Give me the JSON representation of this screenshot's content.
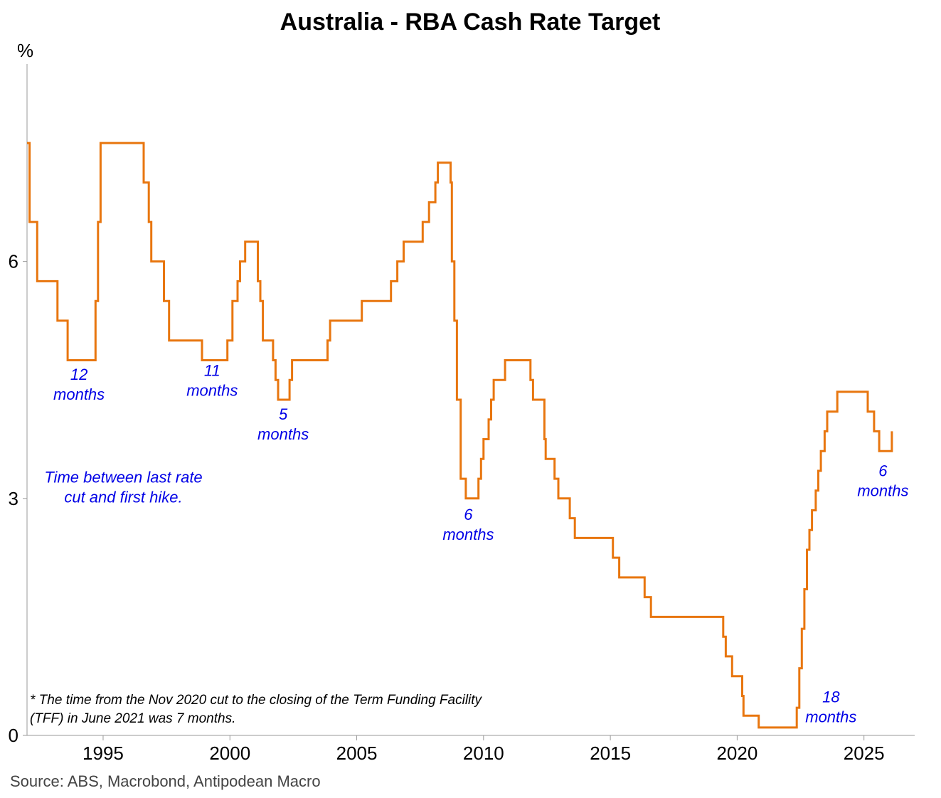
{
  "chart_data": {
    "type": "line",
    "title": "Australia - RBA Cash Rate Target",
    "ylabel": "%",
    "xlabel": "",
    "xlim": [
      1992.0,
      2027.0
    ],
    "ylim": [
      0,
      8.5
    ],
    "yticks": [
      0,
      3,
      6
    ],
    "xticks": [
      1995,
      2000,
      2005,
      2010,
      2015,
      2020,
      2025
    ],
    "color": "#e8760f",
    "series": [
      {
        "name": "RBA Cash Rate Target",
        "step": true,
        "points": [
          [
            1992.0,
            7.5
          ],
          [
            1992.1,
            7.5
          ],
          [
            1992.1,
            6.5
          ],
          [
            1992.4,
            6.5
          ],
          [
            1992.4,
            5.75
          ],
          [
            1993.2,
            5.75
          ],
          [
            1993.2,
            5.25
          ],
          [
            1993.6,
            5.25
          ],
          [
            1993.6,
            4.75
          ],
          [
            1994.7,
            4.75
          ],
          [
            1994.7,
            5.5
          ],
          [
            1994.8,
            5.5
          ],
          [
            1994.8,
            6.5
          ],
          [
            1994.9,
            6.5
          ],
          [
            1994.9,
            7.5
          ],
          [
            1996.6,
            7.5
          ],
          [
            1996.6,
            7.0
          ],
          [
            1996.8,
            7.0
          ],
          [
            1996.8,
            6.5
          ],
          [
            1996.9,
            6.5
          ],
          [
            1996.9,
            6.0
          ],
          [
            1997.4,
            6.0
          ],
          [
            1997.4,
            5.5
          ],
          [
            1997.6,
            5.5
          ],
          [
            1997.6,
            5.0
          ],
          [
            1998.9,
            5.0
          ],
          [
            1998.9,
            4.75
          ],
          [
            1999.9,
            4.75
          ],
          [
            1999.9,
            5.0
          ],
          [
            2000.1,
            5.0
          ],
          [
            2000.1,
            5.5
          ],
          [
            2000.3,
            5.5
          ],
          [
            2000.3,
            5.75
          ],
          [
            2000.4,
            5.75
          ],
          [
            2000.4,
            6.0
          ],
          [
            2000.6,
            6.0
          ],
          [
            2000.6,
            6.25
          ],
          [
            2001.1,
            6.25
          ],
          [
            2001.1,
            5.75
          ],
          [
            2001.2,
            5.75
          ],
          [
            2001.2,
            5.5
          ],
          [
            2001.3,
            5.5
          ],
          [
            2001.3,
            5.0
          ],
          [
            2001.7,
            5.0
          ],
          [
            2001.7,
            4.75
          ],
          [
            2001.8,
            4.75
          ],
          [
            2001.8,
            4.5
          ],
          [
            2001.9,
            4.5
          ],
          [
            2001.9,
            4.25
          ],
          [
            2002.35,
            4.25
          ],
          [
            2002.35,
            4.5
          ],
          [
            2002.45,
            4.5
          ],
          [
            2002.45,
            4.75
          ],
          [
            2003.85,
            4.75
          ],
          [
            2003.85,
            5.0
          ],
          [
            2003.95,
            5.0
          ],
          [
            2003.95,
            5.25
          ],
          [
            2005.2,
            5.25
          ],
          [
            2005.2,
            5.5
          ],
          [
            2006.35,
            5.5
          ],
          [
            2006.35,
            5.75
          ],
          [
            2006.6,
            5.75
          ],
          [
            2006.6,
            6.0
          ],
          [
            2006.85,
            6.0
          ],
          [
            2006.85,
            6.25
          ],
          [
            2007.6,
            6.25
          ],
          [
            2007.6,
            6.5
          ],
          [
            2007.85,
            6.5
          ],
          [
            2007.85,
            6.75
          ],
          [
            2008.1,
            6.75
          ],
          [
            2008.1,
            7.0
          ],
          [
            2008.2,
            7.0
          ],
          [
            2008.2,
            7.25
          ],
          [
            2008.7,
            7.25
          ],
          [
            2008.7,
            7.0
          ],
          [
            2008.75,
            7.0
          ],
          [
            2008.75,
            6.0
          ],
          [
            2008.85,
            6.0
          ],
          [
            2008.85,
            5.25
          ],
          [
            2008.95,
            5.25
          ],
          [
            2008.95,
            4.25
          ],
          [
            2009.1,
            4.25
          ],
          [
            2009.1,
            3.25
          ],
          [
            2009.3,
            3.25
          ],
          [
            2009.3,
            3.0
          ],
          [
            2009.8,
            3.0
          ],
          [
            2009.8,
            3.25
          ],
          [
            2009.9,
            3.25
          ],
          [
            2009.9,
            3.5
          ],
          [
            2010.0,
            3.5
          ],
          [
            2010.0,
            3.75
          ],
          [
            2010.2,
            3.75
          ],
          [
            2010.2,
            4.0
          ],
          [
            2010.3,
            4.0
          ],
          [
            2010.3,
            4.25
          ],
          [
            2010.4,
            4.25
          ],
          [
            2010.4,
            4.5
          ],
          [
            2010.85,
            4.5
          ],
          [
            2010.85,
            4.75
          ],
          [
            2011.85,
            4.75
          ],
          [
            2011.85,
            4.5
          ],
          [
            2011.95,
            4.5
          ],
          [
            2011.95,
            4.25
          ],
          [
            2012.4,
            4.25
          ],
          [
            2012.4,
            3.75
          ],
          [
            2012.45,
            3.75
          ],
          [
            2012.45,
            3.5
          ],
          [
            2012.8,
            3.5
          ],
          [
            2012.8,
            3.25
          ],
          [
            2012.95,
            3.25
          ],
          [
            2012.95,
            3.0
          ],
          [
            2013.4,
            3.0
          ],
          [
            2013.4,
            2.75
          ],
          [
            2013.6,
            2.75
          ],
          [
            2013.6,
            2.5
          ],
          [
            2015.1,
            2.5
          ],
          [
            2015.1,
            2.25
          ],
          [
            2015.35,
            2.25
          ],
          [
            2015.35,
            2.0
          ],
          [
            2016.35,
            2.0
          ],
          [
            2016.35,
            1.75
          ],
          [
            2016.6,
            1.75
          ],
          [
            2016.6,
            1.5
          ],
          [
            2019.45,
            1.5
          ],
          [
            2019.45,
            1.25
          ],
          [
            2019.55,
            1.25
          ],
          [
            2019.55,
            1.0
          ],
          [
            2019.8,
            1.0
          ],
          [
            2019.8,
            0.75
          ],
          [
            2020.2,
            0.75
          ],
          [
            2020.2,
            0.5
          ],
          [
            2020.25,
            0.5
          ],
          [
            2020.25,
            0.25
          ],
          [
            2020.85,
            0.25
          ],
          [
            2020.85,
            0.1
          ],
          [
            2022.35,
            0.1
          ],
          [
            2022.35,
            0.35
          ],
          [
            2022.45,
            0.35
          ],
          [
            2022.45,
            0.85
          ],
          [
            2022.55,
            0.85
          ],
          [
            2022.55,
            1.35
          ],
          [
            2022.65,
            1.35
          ],
          [
            2022.65,
            1.85
          ],
          [
            2022.75,
            1.85
          ],
          [
            2022.75,
            2.35
          ],
          [
            2022.85,
            2.35
          ],
          [
            2022.85,
            2.6
          ],
          [
            2022.95,
            2.6
          ],
          [
            2022.95,
            2.85
          ],
          [
            2023.1,
            2.85
          ],
          [
            2023.1,
            3.1
          ],
          [
            2023.2,
            3.1
          ],
          [
            2023.2,
            3.35
          ],
          [
            2023.3,
            3.35
          ],
          [
            2023.3,
            3.6
          ],
          [
            2023.45,
            3.6
          ],
          [
            2023.45,
            3.85
          ],
          [
            2023.55,
            3.85
          ],
          [
            2023.55,
            4.1
          ],
          [
            2023.95,
            4.1
          ],
          [
            2023.95,
            4.35
          ],
          [
            2025.15,
            4.35
          ],
          [
            2025.15,
            4.1
          ],
          [
            2025.4,
            4.1
          ],
          [
            2025.4,
            3.85
          ],
          [
            2025.6,
            3.85
          ],
          [
            2025.6,
            3.6
          ],
          [
            2026.1,
            3.6
          ],
          [
            2026.1,
            3.85
          ]
        ]
      }
    ],
    "annotations": [
      {
        "lines": [
          "12",
          "months"
        ],
        "x": 1994.05,
        "y": 4.5
      },
      {
        "lines": [
          "11",
          "months"
        ],
        "x": 1999.3,
        "y": 4.55
      },
      {
        "lines": [
          "5",
          "months"
        ],
        "x": 2002.1,
        "y": 4.0
      },
      {
        "lines": [
          "Time between last rate",
          "cut and first hike."
        ],
        "x": 1995.8,
        "y": 3.2
      },
      {
        "lines": [
          "6",
          "months"
        ],
        "x": 2009.4,
        "y": 2.73
      },
      {
        "lines": [
          "6",
          "months"
        ],
        "x": 2025.75,
        "y": 3.28
      },
      {
        "lines": [
          "18",
          "months"
        ],
        "x": 2023.7,
        "y": 0.42
      }
    ],
    "note": [
      "* The time from the Nov 2020 cut to the closing of the Term Funding Facility",
      "(TFF) in June 2021 was 7 months."
    ]
  },
  "source": "Source: ABS, Macrobond, Antipodean Macro"
}
